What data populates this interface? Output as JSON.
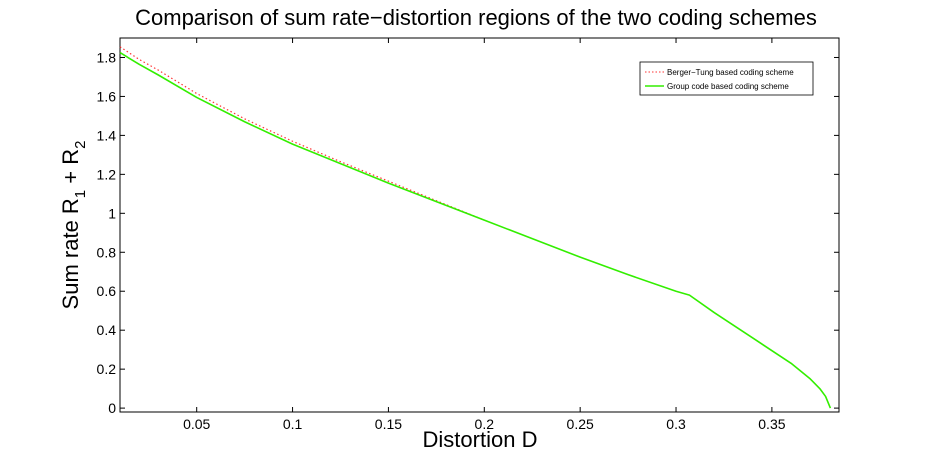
{
  "chart_data": {
    "type": "line",
    "title": "Comparison of sum rate−distortion regions of the two coding schemes",
    "xlabel": "Distortion D",
    "ylabel": {
      "prefix": "Sum rate  R",
      "sub1": "1",
      "mid": " + R",
      "sub2": "2"
    },
    "xlim": [
      0.01,
      0.385
    ],
    "ylim": [
      -0.02,
      1.9
    ],
    "xticks": [
      0.05,
      0.1,
      0.15,
      0.2,
      0.25,
      0.3,
      0.35
    ],
    "xtick_labels": [
      "0.05",
      "0.1",
      "0.15",
      "0.2",
      "0.25",
      "0.3",
      "0.35"
    ],
    "yticks": [
      0,
      0.2,
      0.4,
      0.6,
      0.8,
      1,
      1.2,
      1.4,
      1.6,
      1.8
    ],
    "ytick_labels": [
      "0",
      "0.2",
      "0.4",
      "0.6",
      "0.8",
      "1",
      "1.2",
      "1.4",
      "1.6",
      "1.8"
    ],
    "grid": false,
    "legend_position": "top-right",
    "series": [
      {
        "name": "Berger−Tung based coding scheme",
        "color": "#ff3333",
        "style": "dotted",
        "x": [
          0.01,
          0.02,
          0.03,
          0.05,
          0.075,
          0.1,
          0.125,
          0.15,
          0.175,
          0.2
        ],
        "y": [
          1.855,
          1.79,
          1.735,
          1.615,
          1.485,
          1.37,
          1.265,
          1.165,
          1.065,
          0.965
        ]
      },
      {
        "name": "Group code based coding scheme",
        "color": "#33ee00",
        "style": "solid",
        "x": [
          0.01,
          0.02,
          0.03,
          0.05,
          0.075,
          0.1,
          0.125,
          0.15,
          0.175,
          0.2,
          0.225,
          0.25,
          0.275,
          0.3,
          0.307,
          0.32,
          0.34,
          0.36,
          0.37,
          0.375,
          0.378,
          0.3805
        ],
        "y": [
          1.825,
          1.765,
          1.71,
          1.595,
          1.47,
          1.355,
          1.255,
          1.155,
          1.06,
          0.965,
          0.87,
          0.775,
          0.685,
          0.6,
          0.58,
          0.49,
          0.36,
          0.23,
          0.15,
          0.1,
          0.06,
          0.0
        ]
      }
    ]
  }
}
